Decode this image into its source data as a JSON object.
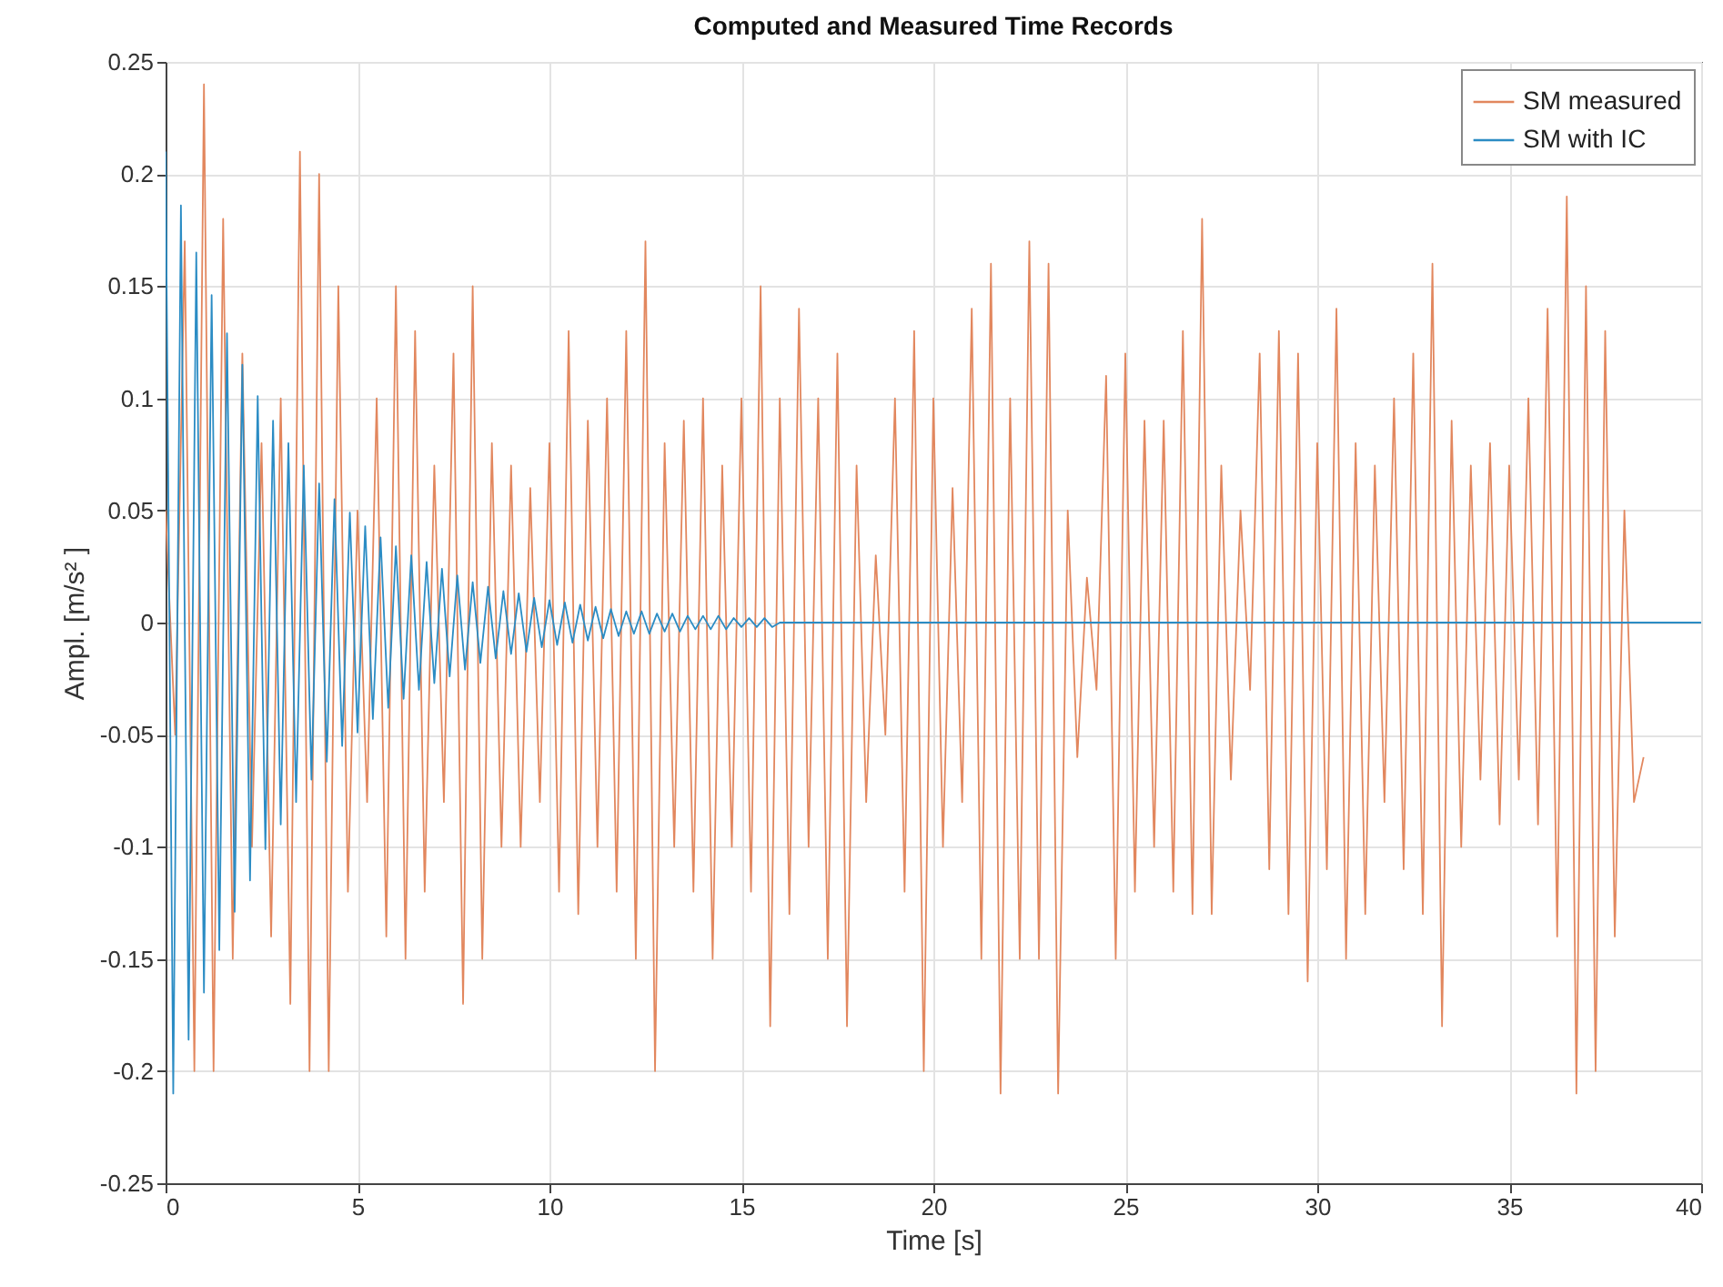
{
  "chart_data": {
    "type": "line",
    "title": "Computed and Measured Time Records",
    "xlabel": "Time [s]",
    "ylabel": "Ampl. [m/s² ]",
    "xlim": [
      0,
      40
    ],
    "ylim": [
      -0.25,
      0.25
    ],
    "xticks": [
      0,
      5,
      10,
      15,
      20,
      25,
      30,
      35,
      40
    ],
    "yticks": [
      -0.25,
      -0.2,
      -0.15,
      -0.1,
      -0.05,
      0,
      0.05,
      0.1,
      0.15,
      0.2,
      0.25
    ],
    "grid": true,
    "legend": "top right",
    "line_style": "solid",
    "series": [
      {
        "name": "SM measured",
        "color": "#e2875e",
        "x": [
          0,
          0.25,
          0.5,
          0.75,
          1,
          1.25,
          1.5,
          1.75,
          2,
          2.25,
          2.5,
          2.75,
          3,
          3.25,
          3.5,
          3.75,
          4,
          4.25,
          4.5,
          4.75,
          5,
          5.25,
          5.5,
          5.75,
          6,
          6.25,
          6.5,
          6.75,
          7,
          7.25,
          7.5,
          7.75,
          8,
          8.25,
          8.5,
          8.75,
          9,
          9.25,
          9.5,
          9.75,
          10,
          10.25,
          10.5,
          10.75,
          11,
          11.25,
          11.5,
          11.75,
          12,
          12.25,
          12.5,
          12.75,
          13,
          13.25,
          13.5,
          13.75,
          14,
          14.25,
          14.5,
          14.75,
          15,
          15.25,
          15.5,
          15.75,
          16,
          16.25,
          16.5,
          16.75,
          17,
          17.25,
          17.5,
          17.75,
          18,
          18.25,
          18.5,
          18.75,
          19,
          19.25,
          19.5,
          19.75,
          20,
          20.25,
          20.5,
          20.75,
          21,
          21.25,
          21.5,
          21.75,
          22,
          22.25,
          22.5,
          22.75,
          23,
          23.25,
          23.5,
          23.75,
          24,
          24.25,
          24.5,
          24.75,
          25,
          25.25,
          25.5,
          25.75,
          26,
          26.25,
          26.5,
          26.75,
          27,
          27.25,
          27.5,
          27.75,
          28,
          28.25,
          28.5,
          28.75,
          29,
          29.25,
          29.5,
          29.75,
          30,
          30.25,
          30.5,
          30.75,
          31,
          31.25,
          31.5,
          31.75,
          32,
          32.25,
          32.5,
          32.75,
          33,
          33.25,
          33.5,
          33.75,
          34,
          34.25,
          34.5,
          34.75,
          35,
          35.25,
          35.5,
          35.75,
          36,
          36.25,
          36.5,
          36.75,
          37,
          37.25,
          37.5,
          37.75,
          38,
          38.25,
          38.5
        ],
        "values": [
          0.05,
          -0.05,
          0.17,
          -0.2,
          0.24,
          -0.2,
          0.18,
          -0.15,
          0.12,
          -0.1,
          0.08,
          -0.14,
          0.1,
          -0.17,
          0.21,
          -0.2,
          0.2,
          -0.2,
          0.15,
          -0.12,
          0.05,
          -0.08,
          0.1,
          -0.14,
          0.15,
          -0.15,
          0.13,
          -0.12,
          0.07,
          -0.08,
          0.12,
          -0.17,
          0.15,
          -0.15,
          0.08,
          -0.1,
          0.07,
          -0.1,
          0.06,
          -0.08,
          0.08,
          -0.12,
          0.13,
          -0.13,
          0.09,
          -0.1,
          0.1,
          -0.12,
          0.13,
          -0.15,
          0.17,
          -0.2,
          0.08,
          -0.1,
          0.09,
          -0.12,
          0.1,
          -0.15,
          0.07,
          -0.1,
          0.1,
          -0.12,
          0.15,
          -0.18,
          0.1,
          -0.13,
          0.14,
          -0.1,
          0.1,
          -0.15,
          0.12,
          -0.18,
          0.07,
          -0.08,
          0.03,
          -0.05,
          0.1,
          -0.12,
          0.13,
          -0.2,
          0.1,
          -0.1,
          0.06,
          -0.08,
          0.14,
          -0.15,
          0.16,
          -0.21,
          0.1,
          -0.15,
          0.17,
          -0.15,
          0.16,
          -0.21,
          0.05,
          -0.06,
          0.02,
          -0.03,
          0.11,
          -0.15,
          0.12,
          -0.12,
          0.09,
          -0.1,
          0.09,
          -0.12,
          0.13,
          -0.13,
          0.18,
          -0.13,
          0.07,
          -0.07,
          0.05,
          -0.03,
          0.12,
          -0.11,
          0.13,
          -0.13,
          0.12,
          -0.16,
          0.08,
          -0.11,
          0.14,
          -0.15,
          0.08,
          -0.13,
          0.07,
          -0.08,
          0.1,
          -0.11,
          0.12,
          -0.13,
          0.16,
          -0.18,
          0.09,
          -0.1,
          0.07,
          -0.07,
          0.08,
          -0.09,
          0.07,
          -0.07,
          0.1,
          -0.09,
          0.14,
          -0.14,
          0.19,
          -0.21,
          0.15,
          -0.2,
          0.13,
          -0.14,
          0.05,
          -0.08,
          -0.06
        ]
      },
      {
        "name": "SM with IC",
        "color": "#2b8cc4",
        "x": [
          0,
          0.2,
          0.4,
          0.6,
          0.8,
          1,
          1.2,
          1.4,
          1.6,
          1.8,
          2,
          2.2,
          2.4,
          2.6,
          2.8,
          3,
          3.2,
          3.4,
          3.6,
          3.8,
          4,
          4.2,
          4.4,
          4.6,
          4.8,
          5,
          5.2,
          5.4,
          5.6,
          5.8,
          6,
          6.2,
          6.4,
          6.6,
          6.8,
          7,
          7.2,
          7.4,
          7.6,
          7.8,
          8,
          8.2,
          8.4,
          8.6,
          8.8,
          9,
          9.2,
          9.4,
          9.6,
          9.8,
          10,
          10.2,
          10.4,
          10.6,
          10.8,
          11,
          11.2,
          11.4,
          11.6,
          11.8,
          12,
          12.2,
          12.4,
          12.6,
          12.8,
          13,
          13.2,
          13.4,
          13.6,
          13.8,
          14,
          14.2,
          14.4,
          14.6,
          14.8,
          15,
          15.2,
          15.4,
          15.6,
          15.8,
          16,
          40
        ],
        "values": [
          0.21,
          -0.21,
          0.186,
          -0.186,
          0.165,
          -0.165,
          0.146,
          -0.146,
          0.129,
          -0.129,
          0.115,
          -0.115,
          0.101,
          -0.101,
          0.09,
          -0.09,
          0.08,
          -0.08,
          0.07,
          -0.07,
          0.062,
          -0.062,
          0.055,
          -0.055,
          0.049,
          -0.049,
          0.043,
          -0.043,
          0.038,
          -0.038,
          0.034,
          -0.034,
          0.03,
          -0.03,
          0.027,
          -0.027,
          0.024,
          -0.024,
          0.021,
          -0.021,
          0.018,
          -0.018,
          0.016,
          -0.016,
          0.014,
          -0.014,
          0.013,
          -0.013,
          0.011,
          -0.011,
          0.01,
          -0.01,
          0.009,
          -0.009,
          0.008,
          -0.008,
          0.007,
          -0.007,
          0.006,
          -0.006,
          0.005,
          -0.005,
          0.005,
          -0.005,
          0.004,
          -0.004,
          0.004,
          -0.004,
          0.003,
          -0.003,
          0.003,
          -0.003,
          0.003,
          -0.003,
          0.002,
          -0.002,
          0.002,
          -0.002,
          0.002,
          -0.002,
          0,
          0
        ]
      }
    ]
  }
}
